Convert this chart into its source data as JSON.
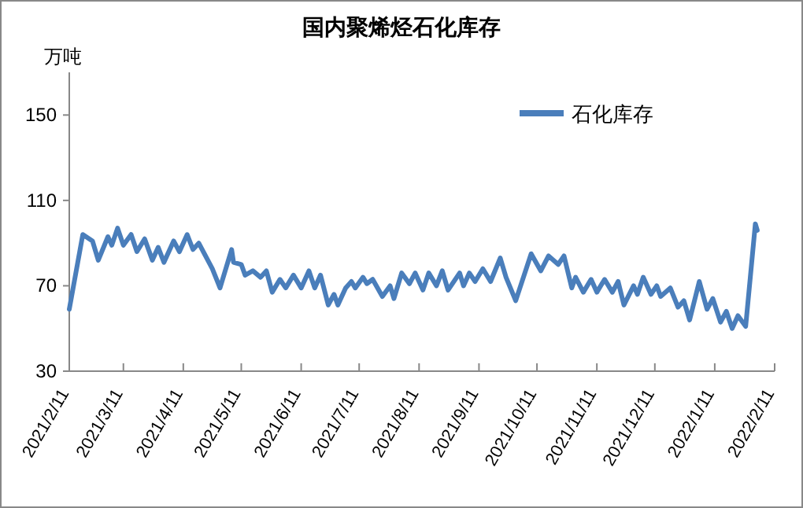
{
  "chart_data": {
    "type": "line",
    "title": "国内聚烯烃石化库存",
    "ylabel": "万吨",
    "legend": "top right",
    "ylim": [
      30,
      170
    ],
    "yticks": [
      30,
      70,
      110,
      150
    ],
    "xlim": [
      "2021-02-11",
      "2022-02-11"
    ],
    "xticks": [
      {
        "value": "2021-02-11",
        "label": "2021/2/11"
      },
      {
        "value": "2021-03-11",
        "label": "2021/3/11"
      },
      {
        "value": "2021-04-11",
        "label": "2021/4/11"
      },
      {
        "value": "2021-05-11",
        "label": "2021/5/11"
      },
      {
        "value": "2021-06-11",
        "label": "2021/6/11"
      },
      {
        "value": "2021-07-11",
        "label": "2021/7/11"
      },
      {
        "value": "2021-08-11",
        "label": "2021/8/11"
      },
      {
        "value": "2021-09-11",
        "label": "2021/9/11"
      },
      {
        "value": "2021-10-11",
        "label": "2021/10/11"
      },
      {
        "value": "2021-11-11",
        "label": "2021/11/11"
      },
      {
        "value": "2021-12-11",
        "label": "2021/12/11"
      },
      {
        "value": "2022-01-11",
        "label": "2022/1/11"
      },
      {
        "value": "2022-02-11",
        "label": "2022/2/11"
      }
    ],
    "x": [
      "2021-02-11",
      "2021-02-18",
      "2021-02-23",
      "2021-02-26",
      "2021-03-03",
      "2021-03-05",
      "2021-03-08",
      "2021-03-11",
      "2021-03-15",
      "2021-03-18",
      "2021-03-22",
      "2021-03-26",
      "2021-03-29",
      "2021-04-01",
      "2021-04-06",
      "2021-04-09",
      "2021-04-13",
      "2021-04-16",
      "2021-04-19",
      "2021-04-26",
      "2021-04-30",
      "2021-05-06",
      "2021-05-07",
      "2021-05-11",
      "2021-05-13",
      "2021-05-17",
      "2021-05-21",
      "2021-05-24",
      "2021-05-27",
      "2021-05-31",
      "2021-06-03",
      "2021-06-07",
      "2021-06-11",
      "2021-06-15",
      "2021-06-18",
      "2021-06-21",
      "2021-06-25",
      "2021-06-28",
      "2021-06-30",
      "2021-07-04",
      "2021-07-07",
      "2021-07-09",
      "2021-07-13",
      "2021-07-15",
      "2021-07-18",
      "2021-07-23",
      "2021-07-27",
      "2021-07-29",
      "2021-08-02",
      "2021-08-06",
      "2021-08-09",
      "2021-08-13",
      "2021-08-16",
      "2021-08-20",
      "2021-08-23",
      "2021-08-26",
      "2021-09-01",
      "2021-09-03",
      "2021-09-06",
      "2021-09-09",
      "2021-09-13",
      "2021-09-17",
      "2021-09-22",
      "2021-09-25",
      "2021-09-30",
      "2021-10-08",
      "2021-10-13",
      "2021-10-17",
      "2021-10-22",
      "2021-10-25",
      "2021-10-29",
      "2021-10-31",
      "2021-11-04",
      "2021-11-08",
      "2021-11-11",
      "2021-11-15",
      "2021-11-19",
      "2021-11-22",
      "2021-11-25",
      "2021-11-30",
      "2021-12-02",
      "2021-12-05",
      "2021-12-09",
      "2021-12-12",
      "2021-12-14",
      "2021-12-19",
      "2021-12-23",
      "2021-12-26",
      "2021-12-29",
      "2022-01-03",
      "2022-01-07",
      "2022-01-10",
      "2022-01-14",
      "2022-01-17",
      "2022-01-20",
      "2022-01-23",
      "2022-01-27",
      "2022-02-01",
      "2022-02-02"
    ],
    "series": [
      {
        "name": "石化库存",
        "color": "#4a7ebb",
        "values": [
          59,
          94,
          91,
          82,
          93,
          89,
          97,
          89,
          94,
          86,
          92,
          82,
          88,
          81,
          91,
          86,
          94,
          87,
          90,
          78,
          69,
          87,
          81,
          80,
          75,
          77,
          74,
          77,
          67,
          73,
          69,
          75,
          69,
          77,
          69,
          75,
          61,
          66,
          61,
          69,
          72,
          69,
          74,
          71,
          73,
          65,
          70,
          64,
          76,
          71,
          76,
          68,
          76,
          70,
          77,
          68,
          76,
          70,
          76,
          72,
          78,
          72,
          83,
          74,
          63,
          85,
          77,
          84,
          80,
          84,
          69,
          74,
          67,
          73,
          67,
          73,
          67,
          72,
          61,
          70,
          66,
          74,
          66,
          70,
          65,
          69,
          60,
          63,
          54,
          72,
          59,
          64,
          53,
          58,
          50,
          56,
          51,
          99,
          96
        ]
      }
    ]
  }
}
